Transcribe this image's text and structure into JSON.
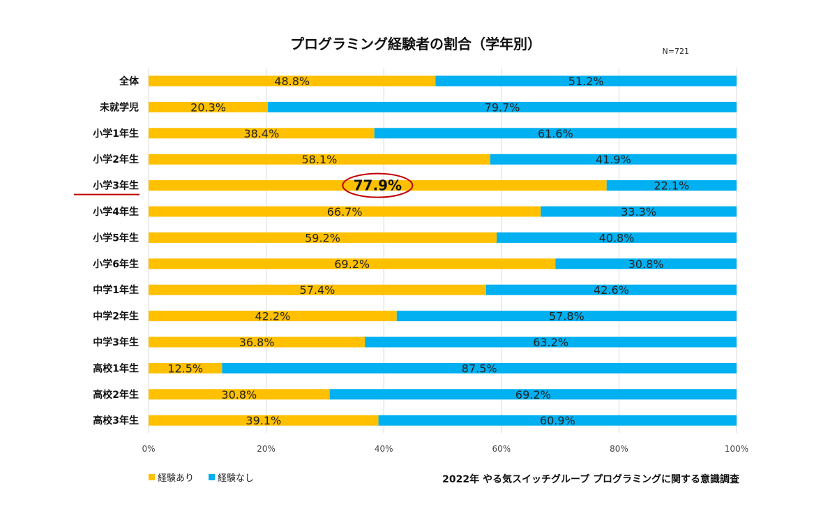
{
  "chart_data": {
    "type": "bar",
    "orientation": "horizontal",
    "stacked": "percent",
    "title": "プログラミング経験者の割合（学年別）",
    "sample_size": "N=721",
    "categories": [
      "全体",
      "未就学児",
      "小学1年生",
      "小学2年生",
      "小学3年生",
      "小学4年生",
      "小学5年生",
      "小学6年生",
      "中学1年生",
      "中学2年生",
      "中学3年生",
      "高校1年生",
      "高校2年生",
      "高校3年生"
    ],
    "series": [
      {
        "name": "経験あり",
        "color": "#FFC000",
        "values": [
          48.8,
          20.3,
          38.4,
          58.1,
          77.9,
          66.7,
          59.2,
          69.2,
          57.4,
          42.2,
          36.8,
          12.5,
          30.8,
          39.1
        ]
      },
      {
        "name": "経験なし",
        "color": "#00B0F0",
        "values": [
          51.2,
          79.7,
          61.6,
          41.9,
          22.1,
          33.3,
          40.8,
          30.8,
          42.6,
          57.8,
          63.2,
          87.5,
          69.2,
          60.9
        ]
      }
    ],
    "xlim": [
      0,
      100
    ],
    "x_ticks": [
      "0%",
      "20%",
      "40%",
      "60%",
      "80%",
      "100%"
    ],
    "grid": true,
    "legend_position": "bottom-left",
    "highlight_category": "小学3年生",
    "highlight_color": "#C00000",
    "source": "2022年 やる気スイッチグループ プログラミングに関する意識調査"
  }
}
